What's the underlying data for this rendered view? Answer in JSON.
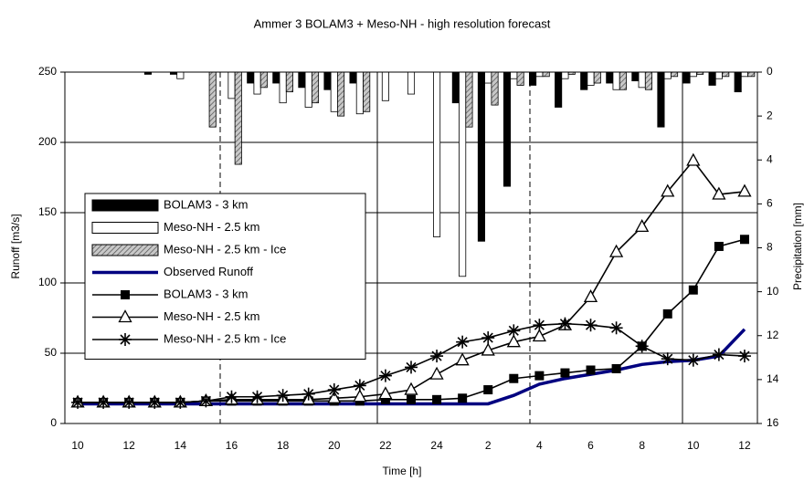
{
  "chart_data": {
    "type": "bar-line",
    "title": "Ammer 3 BOLAM3 + Meso-NH - high resolution forecast",
    "x_label": "Time [h]",
    "y_label": "Runoff [m3/s]",
    "y2_label": "Precipitation [mm]",
    "categories": [
      "10",
      null,
      "12",
      null,
      "14",
      null,
      "16",
      null,
      "18",
      null,
      "20",
      null,
      "22",
      null,
      "24",
      null,
      "2",
      null,
      "4",
      null,
      "6",
      null,
      "8",
      null,
      "10",
      null,
      "12"
    ],
    "ylim": [
      0,
      250
    ],
    "yticks": [
      0,
      50,
      100,
      150,
      200,
      250
    ],
    "y2lim": [
      16,
      0
    ],
    "y2ticks": [
      0,
      2,
      4,
      6,
      8,
      10,
      12,
      14,
      16
    ],
    "grid": true,
    "legend": "left",
    "series": [
      {
        "name": "BOLAM3 - 3 km",
        "type": "bar",
        "axis": "y2",
        "color": "#000000",
        "values": [
          0,
          0,
          0,
          0.1,
          0.1,
          0,
          0,
          0.5,
          0.5,
          0.7,
          0.8,
          0.5,
          0,
          0,
          0,
          1.4,
          7.7,
          5.2,
          0.6,
          1.6,
          0.8,
          0.5,
          0.4,
          2.5,
          0.5,
          0.6,
          0.9
        ]
      },
      {
        "name": "Meso-NH - 2.5 km",
        "type": "bar",
        "axis": "y2",
        "color": "#ffffff",
        "values": [
          0,
          0,
          0,
          0,
          0.3,
          0,
          1.2,
          1.0,
          1.4,
          1.6,
          1.8,
          1.9,
          1.3,
          1.0,
          7.5,
          9.3,
          0.5,
          0.3,
          0.2,
          0.3,
          0.6,
          0.8,
          0.7,
          0.3,
          0.2,
          0.3,
          0.2
        ]
      },
      {
        "name": "Meso-NH - 2.5 km - Ice",
        "type": "bar",
        "axis": "y2",
        "color": "#a0a0a0",
        "pattern": "hatch",
        "values": [
          0,
          0,
          0,
          0,
          0,
          2.5,
          4.2,
          0.7,
          0.9,
          1.4,
          2.0,
          1.8,
          0,
          0,
          0,
          2.5,
          1.5,
          0.6,
          0.2,
          0.1,
          0.5,
          0.8,
          0.8,
          0.2,
          0.1,
          0.2,
          0.2
        ]
      },
      {
        "name": "Observed Runoff",
        "type": "line",
        "color": "#000080",
        "marker": "none",
        "values": [
          14,
          14,
          14,
          14,
          14,
          14,
          14,
          14,
          14,
          14,
          14,
          14,
          14,
          14,
          14,
          14,
          14,
          20,
          28,
          32,
          35,
          38,
          42,
          44,
          45,
          48,
          67
        ]
      },
      {
        "name": "BOLAM3 - 3 km",
        "type": "line",
        "color": "#000000",
        "marker": "square",
        "values": [
          15,
          15,
          15,
          15,
          15,
          16,
          16,
          16,
          16,
          16,
          16,
          16,
          17,
          17,
          17,
          18,
          24,
          32,
          34,
          36,
          38,
          39,
          55,
          78,
          95,
          126,
          131
        ]
      },
      {
        "name": "Meso-NH - 2.5 km",
        "type": "line",
        "color": "#000000",
        "marker": "triangle",
        "values": [
          15,
          15,
          15,
          15,
          15,
          16,
          17,
          17,
          17,
          17,
          18,
          19,
          21,
          24,
          35,
          45,
          52,
          58,
          62,
          70,
          90,
          122,
          140,
          165,
          187,
          163,
          165
        ]
      },
      {
        "name": "Meso-NH - 2.5 km - Ice",
        "type": "line",
        "color": "#000000",
        "marker": "star",
        "values": [
          15,
          15,
          15,
          15,
          15,
          16,
          19,
          19,
          20,
          21,
          24,
          27,
          34,
          40,
          48,
          58,
          61,
          66,
          70,
          71,
          70,
          68,
          55,
          46,
          45,
          49,
          48
        ]
      }
    ]
  }
}
